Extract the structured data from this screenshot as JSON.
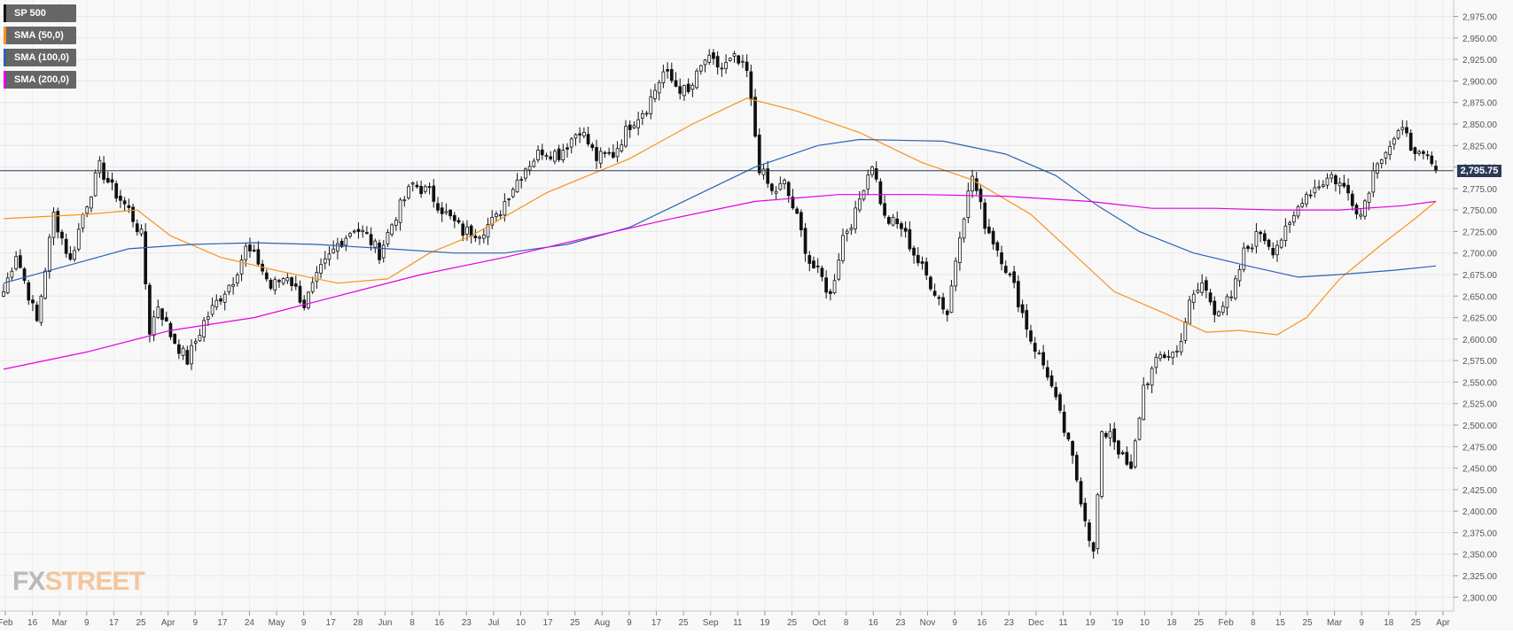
{
  "legend": [
    {
      "label": "SP 500",
      "color": "#111111"
    },
    {
      "label": "SMA (50,0)",
      "color": "#f7931e"
    },
    {
      "label": "SMA (100,0)",
      "color": "#2a63b3"
    },
    {
      "label": "SMA (200,0)",
      "color": "#e400e4"
    }
  ],
  "logo": {
    "fx": "FX",
    "street": "STREET"
  },
  "chart_data": {
    "type": "candlestick",
    "title": "",
    "ylim": [
      2290,
      2990
    ],
    "y_ticks": [
      "2,300.00",
      "2,325.00",
      "2,350.00",
      "2,375.00",
      "2,400.00",
      "2,425.00",
      "2,450.00",
      "2,475.00",
      "2,500.00",
      "2,525.00",
      "2,550.00",
      "2,575.00",
      "2,600.00",
      "2,625.00",
      "2,650.00",
      "2,675.00",
      "2,700.00",
      "2,725.00",
      "2,750.00",
      "2,775.00",
      "2,800.00",
      "2,825.00",
      "2,850.00",
      "2,875.00",
      "2,900.00",
      "2,925.00",
      "2,950.00",
      "2,975.00"
    ],
    "x_ticks": [
      "Feb",
      "16",
      "Mar",
      "9",
      "17",
      "25",
      "Apr",
      "9",
      "17",
      "24",
      "May",
      "9",
      "17",
      "28",
      "Jun",
      "8",
      "16",
      "23",
      "Jul",
      "10",
      "17",
      "25",
      "Aug",
      "9",
      "17",
      "25",
      "Sep",
      "11",
      "19",
      "25",
      "Oct",
      "8",
      "16",
      "23",
      "Nov",
      "9",
      "16",
      "23",
      "Dec",
      "11",
      "19",
      "'19",
      "10",
      "18",
      "25",
      "Feb",
      "8",
      "15",
      "25",
      "Mar",
      "9",
      "18",
      "25",
      "Apr"
    ],
    "last_price": "2,795.75",
    "last_value": 2795.75,
    "close_path": [
      [
        0,
        2655
      ],
      [
        3,
        2700
      ],
      [
        8,
        2620
      ],
      [
        12,
        2745
      ],
      [
        16,
        2690
      ],
      [
        19,
        2745
      ],
      [
        23,
        2800
      ],
      [
        26,
        2775
      ],
      [
        30,
        2750
      ],
      [
        33,
        2720
      ],
      [
        35,
        2610
      ],
      [
        37,
        2640
      ],
      [
        40,
        2605
      ],
      [
        44,
        2575
      ],
      [
        48,
        2620
      ],
      [
        52,
        2650
      ],
      [
        55,
        2670
      ],
      [
        58,
        2705
      ],
      [
        61,
        2690
      ],
      [
        64,
        2660
      ],
      [
        68,
        2675
      ],
      [
        72,
        2640
      ],
      [
        76,
        2680
      ],
      [
        80,
        2710
      ],
      [
        84,
        2730
      ],
      [
        87,
        2720
      ],
      [
        90,
        2700
      ],
      [
        94,
        2745
      ],
      [
        98,
        2780
      ],
      [
        102,
        2770
      ],
      [
        106,
        2745
      ],
      [
        110,
        2725
      ],
      [
        114,
        2725
      ],
      [
        118,
        2740
      ],
      [
        121,
        2770
      ],
      [
        125,
        2800
      ],
      [
        129,
        2820
      ],
      [
        133,
        2815
      ],
      [
        138,
        2845
      ],
      [
        142,
        2810
      ],
      [
        146,
        2815
      ],
      [
        150,
        2850
      ],
      [
        154,
        2870
      ],
      [
        158,
        2910
      ],
      [
        161,
        2895
      ],
      [
        164,
        2885
      ],
      [
        168,
        2925
      ],
      [
        172,
        2915
      ],
      [
        175,
        2925
      ],
      [
        178,
        2910
      ],
      [
        181,
        2800
      ],
      [
        184,
        2770
      ],
      [
        187,
        2780
      ],
      [
        190,
        2740
      ],
      [
        193,
        2690
      ],
      [
        196,
        2670
      ],
      [
        198,
        2650
      ],
      [
        201,
        2720
      ],
      [
        204,
        2745
      ],
      [
        206,
        2780
      ],
      [
        208,
        2805
      ],
      [
        211,
        2740
      ],
      [
        215,
        2730
      ],
      [
        219,
        2690
      ],
      [
        222,
        2665
      ],
      [
        226,
        2630
      ],
      [
        229,
        2725
      ],
      [
        232,
        2790
      ],
      [
        235,
        2735
      ],
      [
        239,
        2695
      ],
      [
        242,
        2660
      ],
      [
        246,
        2600
      ],
      [
        250,
        2560
      ],
      [
        253,
        2510
      ],
      [
        256,
        2460
      ],
      [
        258,
        2415
      ],
      [
        261,
        2350
      ],
      [
        263,
        2485
      ],
      [
        265,
        2495
      ],
      [
        268,
        2460
      ],
      [
        270,
        2445
      ],
      [
        273,
        2545
      ],
      [
        277,
        2580
      ],
      [
        281,
        2585
      ],
      [
        284,
        2640
      ],
      [
        287,
        2665
      ],
      [
        290,
        2635
      ],
      [
        294,
        2645
      ],
      [
        297,
        2700
      ],
      [
        301,
        2725
      ],
      [
        304,
        2705
      ],
      [
        308,
        2730
      ],
      [
        311,
        2765
      ],
      [
        315,
        2780
      ],
      [
        318,
        2790
      ],
      [
        322,
        2770
      ],
      [
        325,
        2745
      ],
      [
        329,
        2810
      ],
      [
        333,
        2830
      ],
      [
        336,
        2845
      ],
      [
        338,
        2810
      ],
      [
        341,
        2810
      ],
      [
        343,
        2795.75
      ]
    ],
    "series": [
      {
        "name": "SMA (50,0)",
        "color": "#f7931e",
        "points": [
          [
            0,
            2740
          ],
          [
            20,
            2745
          ],
          [
            32,
            2750
          ],
          [
            40,
            2720
          ],
          [
            52,
            2695
          ],
          [
            65,
            2680
          ],
          [
            80,
            2665
          ],
          [
            92,
            2670
          ],
          [
            102,
            2700
          ],
          [
            112,
            2720
          ],
          [
            130,
            2770
          ],
          [
            150,
            2810
          ],
          [
            165,
            2850
          ],
          [
            178,
            2880
          ],
          [
            190,
            2865
          ],
          [
            205,
            2840
          ],
          [
            220,
            2805
          ],
          [
            232,
            2785
          ],
          [
            246,
            2745
          ],
          [
            256,
            2700
          ],
          [
            266,
            2655
          ],
          [
            278,
            2630
          ],
          [
            288,
            2608
          ],
          [
            296,
            2610
          ],
          [
            305,
            2605
          ],
          [
            312,
            2625
          ],
          [
            320,
            2670
          ],
          [
            330,
            2710
          ],
          [
            338,
            2740
          ],
          [
            343,
            2760
          ]
        ]
      },
      {
        "name": "SMA (100,0)",
        "color": "#2a63b3",
        "points": [
          [
            0,
            2665
          ],
          [
            15,
            2685
          ],
          [
            30,
            2705
          ],
          [
            45,
            2710
          ],
          [
            60,
            2712
          ],
          [
            75,
            2710
          ],
          [
            92,
            2705
          ],
          [
            108,
            2700
          ],
          [
            120,
            2700
          ],
          [
            135,
            2710
          ],
          [
            150,
            2730
          ],
          [
            165,
            2765
          ],
          [
            180,
            2800
          ],
          [
            195,
            2825
          ],
          [
            205,
            2832
          ],
          [
            225,
            2830
          ],
          [
            240,
            2815
          ],
          [
            252,
            2790
          ],
          [
            262,
            2755
          ],
          [
            272,
            2725
          ],
          [
            285,
            2700
          ],
          [
            298,
            2685
          ],
          [
            310,
            2672
          ],
          [
            320,
            2675
          ],
          [
            333,
            2680
          ],
          [
            343,
            2685
          ]
        ]
      },
      {
        "name": "SMA (200,0)",
        "color": "#e400e4",
        "points": [
          [
            0,
            2565
          ],
          [
            20,
            2585
          ],
          [
            40,
            2610
          ],
          [
            60,
            2625
          ],
          [
            80,
            2650
          ],
          [
            100,
            2675
          ],
          [
            120,
            2695
          ],
          [
            140,
            2718
          ],
          [
            160,
            2740
          ],
          [
            180,
            2760
          ],
          [
            200,
            2768
          ],
          [
            220,
            2768
          ],
          [
            240,
            2766
          ],
          [
            260,
            2760
          ],
          [
            275,
            2752
          ],
          [
            290,
            2752
          ],
          [
            305,
            2750
          ],
          [
            320,
            2750
          ],
          [
            335,
            2755
          ],
          [
            343,
            2760
          ]
        ]
      }
    ]
  }
}
